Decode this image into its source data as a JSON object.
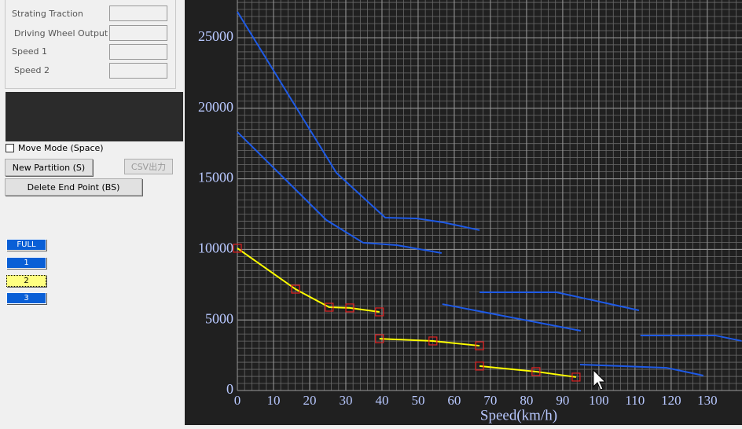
{
  "panel": {
    "fields": [
      "Strating Traction",
      "Driving Wheel Output",
      "Speed 1",
      "Speed 2"
    ],
    "move_mode": "Move Mode (Space)",
    "buttons": {
      "new_partition": "New Partition (S)",
      "csv": "CSV出力",
      "delete": "Delete End Point (BS)"
    },
    "modes": [
      "FULL",
      "1",
      "2",
      "3"
    ]
  },
  "chart_data": {
    "type": "line",
    "x_label": "Speed(km/h)",
    "xlim": [
      0,
      139.6
    ],
    "ylim": [
      0,
      27670
    ],
    "xticks": [
      0,
      10,
      20,
      30,
      40,
      50,
      60,
      70,
      80,
      90,
      100,
      110,
      120,
      130
    ],
    "yticks": [
      0,
      5000,
      10000,
      15000,
      20000,
      25000
    ],
    "grid": true,
    "marker_color": "#e02020",
    "series": [
      {
        "color": "#1e5ae6",
        "markers": false,
        "x": [
          0,
          27.4,
          40.9,
          49.6,
          57.2,
          67
        ],
        "values": [
          26840,
          15420,
          12250,
          12190,
          11900,
          11360
        ]
      },
      {
        "color": "#1e5ae6",
        "markers": false,
        "x": [
          0,
          24.6,
          34.8,
          44.1,
          56.5
        ],
        "values": [
          18320,
          12080,
          10470,
          10300,
          9740
        ]
      },
      {
        "color": "#1e5ae6",
        "markers": false,
        "x": [
          56.7,
          95
        ],
        "values": [
          6120,
          4230
        ]
      },
      {
        "color": "#1e5ae6",
        "markers": false,
        "x": [
          67,
          88.3,
          111.1
        ],
        "values": [
          6960,
          6960,
          5680
        ]
      },
      {
        "color": "#1e5ae6",
        "markers": false,
        "x": [
          94.8,
          106,
          118.7,
          128.9
        ],
        "values": [
          1840,
          1730,
          1610,
          1060
        ]
      },
      {
        "color": "#1e5ae6",
        "markers": false,
        "x": [
          111.5,
          132.2,
          139.5
        ],
        "values": [
          3900,
          3900,
          3510
        ]
      },
      {
        "color": "#ffff00",
        "markers": true,
        "x": [
          0,
          16.1,
          25.4,
          31.1,
          39.3
        ],
        "values": [
          10080,
          7180,
          5900,
          5850,
          5570
        ]
      },
      {
        "color": "#ffff00",
        "markers": true,
        "x": [
          39.3,
          54.1,
          67
        ],
        "values": [
          3670,
          3510,
          3170
        ]
      },
      {
        "color": "#ffff00",
        "markers": true,
        "x": [
          67,
          82.6,
          93.7
        ],
        "values": [
          1730,
          1340,
          950
        ]
      }
    ]
  }
}
